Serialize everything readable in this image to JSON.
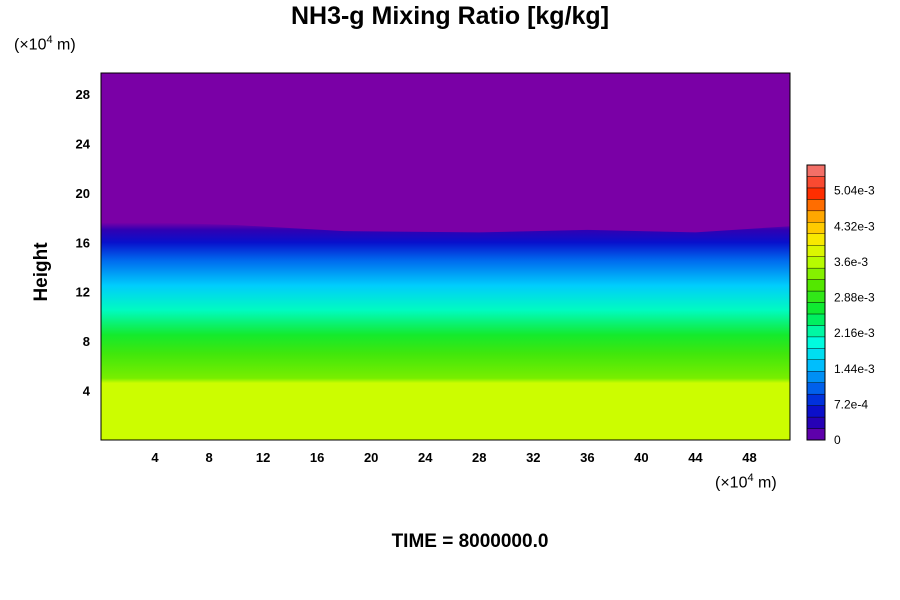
{
  "chart_data": {
    "type": "heatmap",
    "title": "NH3-g Mixing Ratio [kg/kg]",
    "ylabel": "Height",
    "xlabel": "",
    "x_unit_label": "(×10",
    "x_unit_exp": "4",
    "x_unit_suffix": " m)",
    "y_unit_label": "(×10",
    "y_unit_exp": "4",
    "y_unit_suffix": " m)",
    "xlim": [
      0,
      51
    ],
    "ylim": [
      0,
      29.7
    ],
    "x_ticks": [
      4,
      8,
      12,
      16,
      20,
      24,
      28,
      32,
      36,
      40,
      44,
      48
    ],
    "y_ticks": [
      4,
      8,
      12,
      16,
      20,
      24,
      28
    ],
    "colorbar": {
      "range": [
        0,
        0.00556
      ],
      "tick_values": [
        0,
        0.00072,
        0.00144,
        0.00216,
        0.00288,
        0.0036,
        0.00432,
        0.00504
      ],
      "tick_labels": [
        "0",
        "7.2e-4",
        "1.44e-3",
        "2.16e-3",
        "2.88e-3",
        "3.6e-3",
        "4.32e-3",
        "5.04e-3"
      ],
      "levels": 24
    },
    "profile": [
      {
        "height": 0,
        "value": 0.0037
      },
      {
        "height": 4.6,
        "value": 0.0037
      },
      {
        "height": 5.0,
        "value": 0.0033
      },
      {
        "height": 7.0,
        "value": 0.003
      },
      {
        "height": 8.5,
        "value": 0.0027
      },
      {
        "height": 10.5,
        "value": 0.0021
      },
      {
        "height": 12.5,
        "value": 0.0016
      },
      {
        "height": 14.5,
        "value": 0.0011
      },
      {
        "height": 16.0,
        "value": 0.0006
      },
      {
        "height": 17.0,
        "value": 0.0003
      },
      {
        "height": 17.6,
        "value": 0.0
      }
    ],
    "top_boundary": [
      {
        "x": 0,
        "height": 17.8
      },
      {
        "x": 4,
        "height": 17.6
      },
      {
        "x": 10,
        "height": 17.4
      },
      {
        "x": 18,
        "height": 16.9
      },
      {
        "x": 28,
        "height": 16.8
      },
      {
        "x": 36,
        "height": 17.0
      },
      {
        "x": 44,
        "height": 16.8
      },
      {
        "x": 51,
        "height": 17.3
      }
    ]
  },
  "time_label": "TIME = 8000000.0",
  "colors": {
    "background": "#7a00a6",
    "frame": "#000000"
  }
}
